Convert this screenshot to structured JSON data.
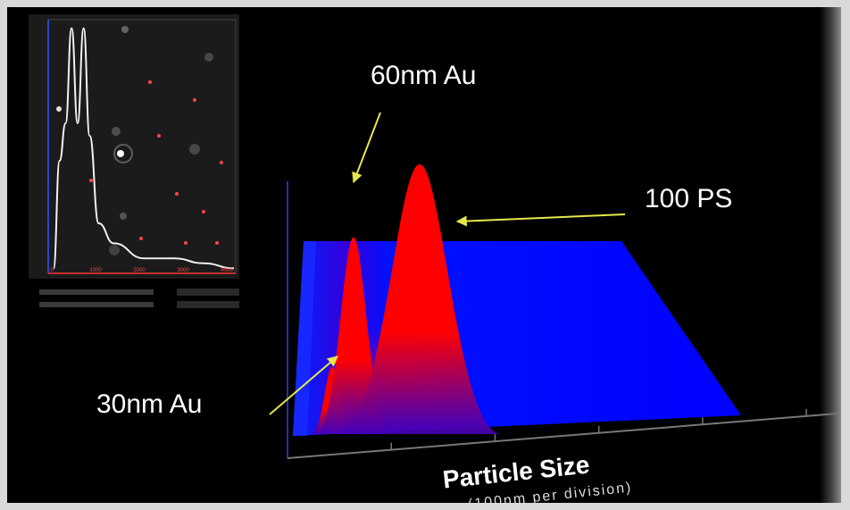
{
  "chart_data": {
    "type": "area",
    "xlabel": "Particle Size",
    "xlabel_sub": "(100nm per division)",
    "peaks": [
      {
        "label": "30nm Au",
        "size_nm": 30,
        "relative_height": 0.25
      },
      {
        "label": "60nm Au",
        "size_nm": 60,
        "relative_height": 0.73
      },
      {
        "label": "100 PS",
        "size_nm": 100,
        "relative_height": 1.0
      }
    ],
    "colors": {
      "peak": "#ff0000",
      "surface": "#0000ff",
      "arrow": "#e6e64a",
      "inset_curve": "#f2f2f2"
    }
  },
  "inset": {
    "curve_x": [
      0,
      20,
      40,
      60,
      80,
      100,
      120,
      150,
      200,
      300,
      400,
      500,
      600
    ],
    "curve_y": [
      0.02,
      0.45,
      0.6,
      0.98,
      0.6,
      0.98,
      0.55,
      0.2,
      0.12,
      0.06,
      0.06,
      0.04,
      0.02
    ],
    "x_ticks": [
      "0",
      "1000",
      "2000",
      "3000",
      "4000"
    ]
  }
}
